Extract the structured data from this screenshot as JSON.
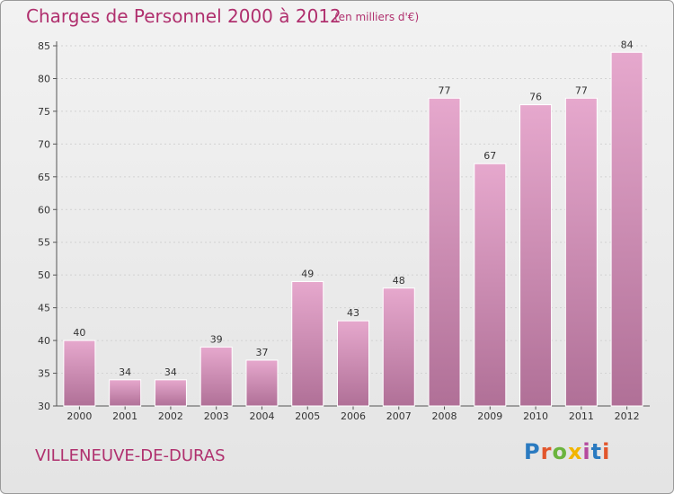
{
  "header": {
    "title": "Charges de Personnel 2000 à 2012",
    "subtitle": "(en milliers d'€)"
  },
  "footer": {
    "commune": "VILLENEUVE-DE-DURAS",
    "logo_text": "Proxiti",
    "logo_colors": [
      "#2a7ac0",
      "#e2562c",
      "#6bb43e",
      "#f2b500",
      "#b54a9e",
      "#2a7ac0",
      "#e2562c"
    ]
  },
  "colors": {
    "bar_top": "#e6a8cd",
    "bar_bottom": "#b07097",
    "text_accent": "#b0306e"
  },
  "chart_data": {
    "type": "bar",
    "title": "Charges de Personnel 2000 à 2012",
    "subtitle": "(en milliers d'€)",
    "xlabel": "",
    "ylabel": "",
    "categories": [
      "2000",
      "2001",
      "2002",
      "2003",
      "2004",
      "2005",
      "2006",
      "2007",
      "2008",
      "2009",
      "2010",
      "2011",
      "2012"
    ],
    "values": [
      40,
      34,
      34,
      39,
      37,
      49,
      43,
      48,
      77,
      67,
      76,
      77,
      84
    ],
    "ylim": [
      30,
      85
    ],
    "yticks": [
      30,
      35,
      40,
      45,
      50,
      55,
      60,
      65,
      70,
      75,
      80,
      85
    ],
    "grid": true,
    "legend": "none"
  }
}
